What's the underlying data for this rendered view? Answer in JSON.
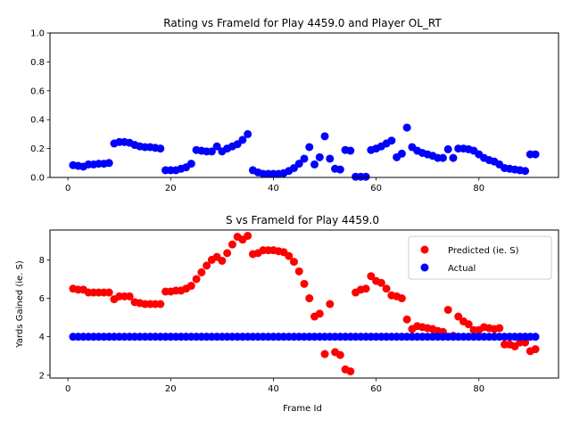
{
  "chart_data": [
    {
      "type": "scatter",
      "title": "Rating vs FrameId for Play 4459.0 and Player OL_RT",
      "xlabel": "",
      "ylabel": "",
      "xlim": [
        -3.5,
        95.5
      ],
      "ylim": [
        0.0,
        1.0
      ],
      "xticks": [
        0,
        20,
        40,
        60,
        80
      ],
      "xtick_labels": [
        "0",
        "20",
        "40",
        "60",
        "80"
      ],
      "yticks": [
        0.0,
        0.2,
        0.4,
        0.6,
        0.8,
        1.0
      ],
      "ytick_labels": [
        "0.0",
        "0.2",
        "0.4",
        "0.6",
        "0.8",
        "1.0"
      ],
      "grid": false,
      "series": [
        {
          "color": "#0000ff",
          "x": [
            1,
            2,
            3,
            4,
            5,
            6,
            7,
            8,
            9,
            10,
            11,
            12,
            13,
            14,
            15,
            16,
            17,
            18,
            19,
            20,
            21,
            22,
            23,
            24,
            25,
            26,
            27,
            28,
            29,
            30,
            31,
            32,
            33,
            34,
            35,
            36,
            37,
            38,
            39,
            40,
            41,
            42,
            43,
            44,
            45,
            46,
            47,
            48,
            49,
            50,
            51,
            52,
            53,
            54,
            55,
            56,
            57,
            58,
            59,
            60,
            61,
            62,
            63,
            64,
            65,
            66,
            67,
            68,
            69,
            70,
            71,
            72,
            73,
            74,
            75,
            76,
            77,
            78,
            79,
            80,
            81,
            82,
            83,
            84,
            85,
            86,
            87,
            88,
            89,
            90,
            91
          ],
          "y": [
            0.085,
            0.08,
            0.075,
            0.09,
            0.09,
            0.095,
            0.095,
            0.1,
            0.235,
            0.245,
            0.245,
            0.24,
            0.225,
            0.215,
            0.21,
            0.21,
            0.205,
            0.2,
            0.05,
            0.05,
            0.05,
            0.06,
            0.07,
            0.095,
            0.19,
            0.185,
            0.18,
            0.18,
            0.215,
            0.18,
            0.2,
            0.215,
            0.23,
            0.26,
            0.3,
            0.05,
            0.035,
            0.025,
            0.025,
            0.025,
            0.025,
            0.03,
            0.045,
            0.065,
            0.095,
            0.13,
            0.21,
            0.09,
            0.14,
            0.285,
            0.13,
            0.06,
            0.055,
            0.19,
            0.185,
            0.005,
            0.005,
            0.005,
            0.19,
            0.2,
            0.215,
            0.235,
            0.255,
            0.14,
            0.165,
            0.345,
            0.21,
            0.185,
            0.17,
            0.16,
            0.15,
            0.135,
            0.135,
            0.195,
            0.135,
            0.2,
            0.2,
            0.195,
            0.185,
            0.16,
            0.135,
            0.12,
            0.11,
            0.09,
            0.065,
            0.06,
            0.055,
            0.05,
            0.045,
            0.16,
            0.16
          ]
        }
      ]
    },
    {
      "type": "scatter",
      "title": "S vs FrameId for Play 4459.0",
      "xlabel": "Frame Id",
      "ylabel": "Yards Gained (ie. S)",
      "xlim": [
        -3.5,
        95.5
      ],
      "ylim": [
        1.85,
        9.55
      ],
      "xticks": [
        0,
        20,
        40,
        60,
        80
      ],
      "xtick_labels": [
        "0",
        "20",
        "40",
        "60",
        "80"
      ],
      "yticks": [
        2,
        4,
        6,
        8
      ],
      "ytick_labels": [
        "2",
        "4",
        "6",
        "8"
      ],
      "grid": false,
      "legend_position": "top-right",
      "series": [
        {
          "name": "Predicted (ie. S)",
          "color": "#ff0000",
          "x": [
            1,
            2,
            3,
            4,
            5,
            6,
            7,
            8,
            9,
            10,
            11,
            12,
            13,
            14,
            15,
            16,
            17,
            18,
            19,
            20,
            21,
            22,
            23,
            24,
            25,
            26,
            27,
            28,
            29,
            30,
            31,
            32,
            33,
            34,
            35,
            36,
            37,
            38,
            39,
            40,
            41,
            42,
            43,
            44,
            45,
            46,
            47,
            48,
            49,
            50,
            51,
            52,
            53,
            54,
            55,
            56,
            57,
            58,
            59,
            60,
            61,
            62,
            63,
            64,
            65,
            66,
            67,
            68,
            69,
            70,
            71,
            72,
            73,
            74,
            75,
            76,
            77,
            78,
            79,
            80,
            81,
            82,
            83,
            84,
            85,
            86,
            87,
            88,
            89,
            90,
            91
          ],
          "y": [
            6.5,
            6.45,
            6.45,
            6.3,
            6.3,
            6.3,
            6.3,
            6.3,
            5.95,
            6.1,
            6.1,
            6.1,
            5.8,
            5.75,
            5.7,
            5.7,
            5.7,
            5.7,
            6.35,
            6.35,
            6.4,
            6.4,
            6.5,
            6.65,
            7.0,
            7.35,
            7.7,
            8.0,
            8.15,
            7.95,
            8.35,
            8.8,
            9.2,
            9.05,
            9.25,
            8.3,
            8.35,
            8.5,
            8.5,
            8.5,
            8.45,
            8.4,
            8.2,
            7.9,
            7.4,
            6.75,
            6.0,
            5.05,
            5.2,
            3.1,
            5.7,
            3.2,
            3.05,
            2.3,
            2.2,
            6.3,
            6.45,
            6.5,
            7.15,
            6.9,
            6.8,
            6.5,
            6.15,
            6.1,
            6.0,
            4.9,
            4.4,
            4.55,
            4.5,
            4.45,
            4.4,
            4.3,
            4.25,
            5.4,
            4.05,
            5.05,
            4.8,
            4.65,
            4.35,
            4.35,
            4.5,
            4.45,
            4.4,
            4.45,
            3.6,
            3.6,
            3.5,
            3.7,
            3.7,
            3.25,
            3.35
          ]
        },
        {
          "name": "Actual",
          "color": "#0000ff",
          "x": [
            1,
            2,
            3,
            4,
            5,
            6,
            7,
            8,
            9,
            10,
            11,
            12,
            13,
            14,
            15,
            16,
            17,
            18,
            19,
            20,
            21,
            22,
            23,
            24,
            25,
            26,
            27,
            28,
            29,
            30,
            31,
            32,
            33,
            34,
            35,
            36,
            37,
            38,
            39,
            40,
            41,
            42,
            43,
            44,
            45,
            46,
            47,
            48,
            49,
            50,
            51,
            52,
            53,
            54,
            55,
            56,
            57,
            58,
            59,
            60,
            61,
            62,
            63,
            64,
            65,
            66,
            67,
            68,
            69,
            70,
            71,
            72,
            73,
            74,
            75,
            76,
            77,
            78,
            79,
            80,
            81,
            82,
            83,
            84,
            85,
            86,
            87,
            88,
            89,
            90,
            91
          ],
          "y": [
            4,
            4,
            4,
            4,
            4,
            4,
            4,
            4,
            4,
            4,
            4,
            4,
            4,
            4,
            4,
            4,
            4,
            4,
            4,
            4,
            4,
            4,
            4,
            4,
            4,
            4,
            4,
            4,
            4,
            4,
            4,
            4,
            4,
            4,
            4,
            4,
            4,
            4,
            4,
            4,
            4,
            4,
            4,
            4,
            4,
            4,
            4,
            4,
            4,
            4,
            4,
            4,
            4,
            4,
            4,
            4,
            4,
            4,
            4,
            4,
            4,
            4,
            4,
            4,
            4,
            4,
            4,
            4,
            4,
            4,
            4,
            4,
            4,
            4,
            4,
            4,
            4,
            4,
            4,
            4,
            4,
            4,
            4,
            4,
            4,
            4,
            4,
            4,
            4,
            4,
            4
          ]
        }
      ]
    }
  ]
}
